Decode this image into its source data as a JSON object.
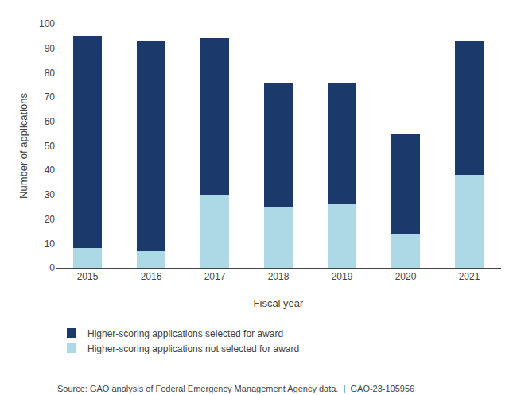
{
  "chart_data": {
    "type": "bar",
    "stacked": true,
    "categories": [
      "2015",
      "2016",
      "2017",
      "2018",
      "2019",
      "2020",
      "2021"
    ],
    "series": [
      {
        "name": "Higher-scoring applications not selected for award",
        "color": "#ADD8E6",
        "values": [
          8,
          7,
          30,
          25,
          26,
          14,
          38
        ]
      },
      {
        "name": "Higher-scoring applications selected for award",
        "color": "#1B3A6B",
        "values": [
          87,
          86,
          64,
          51,
          50,
          41,
          55
        ]
      }
    ],
    "xlabel": "Fiscal year",
    "ylabel": "Number of applications",
    "ylim": [
      0,
      100
    ],
    "yticks": [
      0,
      10,
      20,
      30,
      40,
      50,
      60,
      70,
      80,
      90,
      100
    ],
    "grid": false,
    "annotations": [
      "Source: GAO analysis of Federal Emergency Management Agency data.  |  GAO-23-105956"
    ]
  }
}
